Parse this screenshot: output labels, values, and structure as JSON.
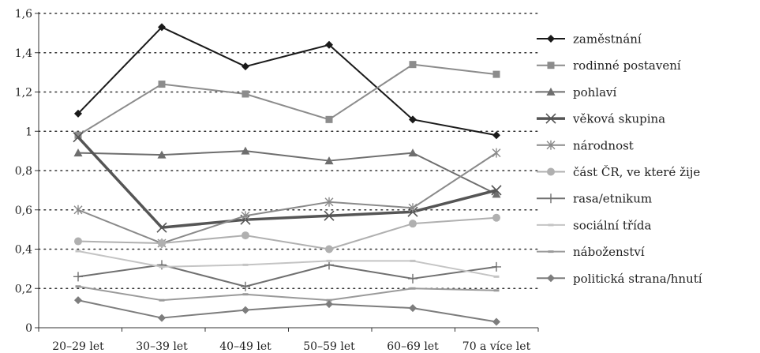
{
  "chart_data": {
    "type": "line",
    "title": "",
    "xlabel": "",
    "ylabel": "",
    "categories": [
      "20–29 let",
      "30–39 let",
      "40–49 let",
      "50–59 let",
      "60–69 let",
      "70 a více let"
    ],
    "ylim": [
      0,
      1.6
    ],
    "yticks": [
      "0",
      "0,2",
      "0,4",
      "0,6",
      "0,8",
      "1",
      "1,2",
      "1,4",
      "1,6"
    ],
    "grid": "horizontal dotted",
    "legend_position": "right",
    "series": [
      {
        "name": "zaměstnání",
        "values": [
          1.09,
          1.53,
          1.33,
          1.44,
          1.06,
          0.98
        ],
        "color": "#1a1a1a",
        "marker": "diamond",
        "width": 2
      },
      {
        "name": "rodinné postavení",
        "values": [
          0.98,
          1.24,
          1.19,
          1.06,
          1.34,
          1.29
        ],
        "color": "#8c8c8c",
        "marker": "square",
        "width": 2
      },
      {
        "name": "pohlaví",
        "values": [
          0.89,
          0.88,
          0.9,
          0.85,
          0.89,
          0.68
        ],
        "color": "#6e6e6e",
        "marker": "triangle",
        "width": 2
      },
      {
        "name": "věková skupina",
        "values": [
          0.97,
          0.51,
          0.55,
          0.57,
          0.59,
          0.7
        ],
        "color": "#555555",
        "marker": "x",
        "width": 3.5
      },
      {
        "name": "národnost",
        "values": [
          0.6,
          0.43,
          0.57,
          0.64,
          0.61,
          0.89
        ],
        "color": "#8a8a8a",
        "marker": "star",
        "width": 2
      },
      {
        "name": "část ČR, ve které žije",
        "values": [
          0.44,
          0.43,
          0.47,
          0.4,
          0.53,
          0.56
        ],
        "color": "#b0b0b0",
        "marker": "circle",
        "width": 2
      },
      {
        "name": "rasa/etnikum",
        "values": [
          0.26,
          0.32,
          0.21,
          0.32,
          0.25,
          0.31
        ],
        "color": "#707070",
        "marker": "plus",
        "width": 2
      },
      {
        "name": "sociální třída",
        "values": [
          0.39,
          0.31,
          0.32,
          0.34,
          0.34,
          0.26
        ],
        "color": "#c4c4c4",
        "marker": "dash",
        "width": 2
      },
      {
        "name": "náboženství",
        "values": [
          0.21,
          0.14,
          0.17,
          0.14,
          0.2,
          0.19
        ],
        "color": "#9a9a9a",
        "marker": "dash",
        "width": 2
      },
      {
        "name": "politická strana/hnutí",
        "values": [
          0.14,
          0.05,
          0.09,
          0.12,
          0.1,
          0.03
        ],
        "color": "#7d7d7d",
        "marker": "diamond",
        "width": 2
      }
    ]
  }
}
